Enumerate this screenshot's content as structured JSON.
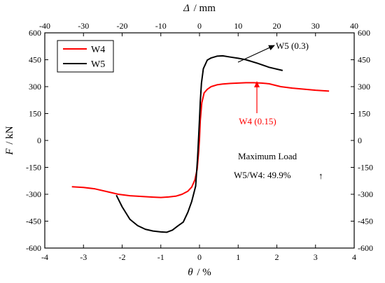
{
  "chart_data": {
    "type": "line",
    "xlabel_var": "θ",
    "xlabel_unit": "/ %",
    "ylabel_var": "F",
    "ylabel_unit": "/ kN",
    "top_xlabel_var": "Δ",
    "top_xlabel_unit": "/ mm",
    "xlim": [
      -4,
      4
    ],
    "ylim": [
      -600,
      600
    ],
    "top_xlim": [
      -40,
      40
    ],
    "x_ticks": [
      -4,
      -3,
      -2,
      -1,
      0,
      1,
      2,
      3,
      4
    ],
    "top_x_ticks": [
      -40,
      -30,
      -20,
      -10,
      0,
      10,
      20,
      30,
      40
    ],
    "y_ticks": [
      -600,
      -450,
      -300,
      -150,
      0,
      150,
      300,
      450,
      600
    ],
    "grid": false,
    "legend_position": "top-left",
    "series": [
      {
        "name": "W4",
        "color": "#ff0000",
        "x": [
          -3.3,
          -3.0,
          -2.7,
          -2.4,
          -2.1,
          -1.8,
          -1.5,
          -1.2,
          -1.0,
          -0.8,
          -0.6,
          -0.45,
          -0.3,
          -0.2,
          -0.12,
          -0.06,
          -0.02,
          0.0,
          0.02,
          0.06,
          0.12,
          0.2,
          0.3,
          0.45,
          0.6,
          0.8,
          1.0,
          1.2,
          1.4,
          1.6,
          1.8,
          2.1,
          2.4,
          2.7,
          3.0,
          3.35
        ],
        "y": [
          -258,
          -262,
          -270,
          -285,
          -300,
          -308,
          -312,
          -316,
          -318,
          -315,
          -310,
          -300,
          -283,
          -260,
          -220,
          -160,
          -60,
          10,
          110,
          210,
          265,
          285,
          300,
          310,
          315,
          318,
          320,
          322,
          322,
          320,
          316,
          300,
          292,
          286,
          280,
          275
        ]
      },
      {
        "name": "W5",
        "color": "#000000",
        "x": [
          -2.15,
          -2.0,
          -1.8,
          -1.6,
          -1.4,
          -1.2,
          -1.0,
          -0.85,
          -0.7,
          -0.55,
          -0.42,
          -0.3,
          -0.2,
          -0.1,
          -0.05,
          -0.02,
          0.0,
          0.02,
          0.05,
          0.1,
          0.2,
          0.3,
          0.45,
          0.6,
          0.8,
          1.0,
          1.2,
          1.5,
          1.8,
          2.15
        ],
        "y": [
          -305,
          -370,
          -440,
          -475,
          -495,
          -505,
          -510,
          -512,
          -500,
          -475,
          -455,
          -400,
          -340,
          -255,
          -100,
          30,
          120,
          215,
          320,
          400,
          448,
          460,
          470,
          472,
          465,
          458,
          450,
          430,
          408,
          390
        ]
      }
    ],
    "annotations": {
      "w5_peak": "W5 (0.3)",
      "w4_peak": "W4 (0.15)",
      "max_load_title": "Maximum Load",
      "max_load_ratio": "W5/W4: 49.9%",
      "arrow_symbol": "↑"
    }
  }
}
